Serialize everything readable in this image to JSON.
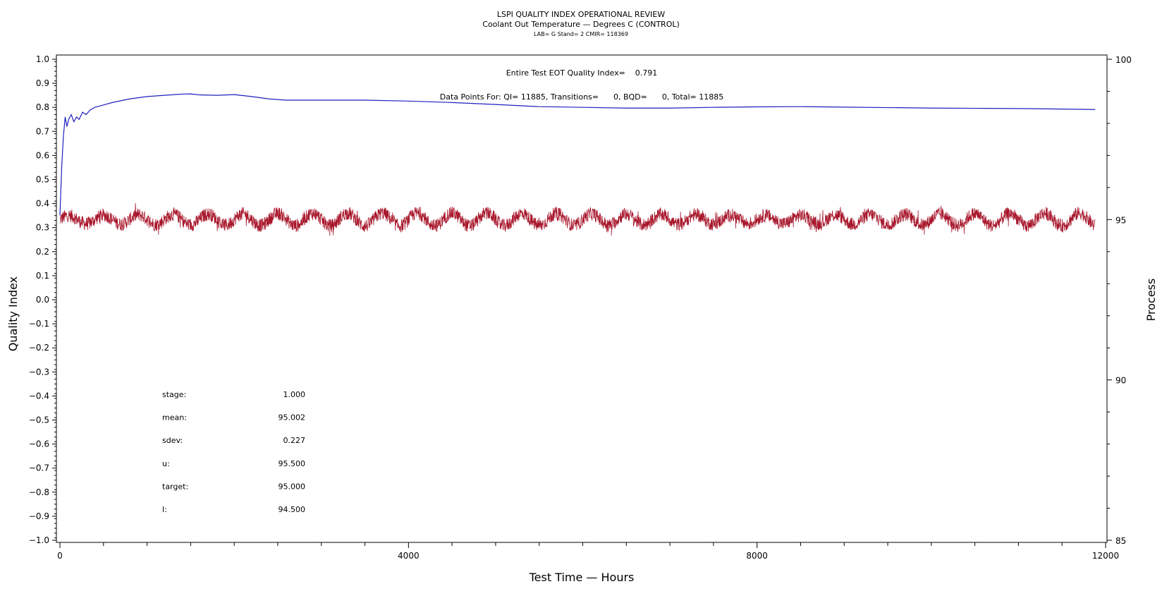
{
  "chart_data": {
    "type": "line",
    "title": "LSPI QUALITY INDEX OPERATIONAL REVIEW",
    "subtitle": "Coolant Out Temperature — Degrees C (CONTROL)",
    "subsubtitle": "LAB= G Stand= 2 CMIR= 118369",
    "annotation_qi": "Entire Test EOT Quality Index=    0.791",
    "annotation_points": "Data Points For: QI= 11885, Transitions=      0, BQD=      0, Total= 11885",
    "xlabel": "Test Time — Hours",
    "ylabel_left": "Quality Index",
    "ylabel_right": "Process",
    "xlim": [
      0,
      12000
    ],
    "ylim_left": [
      -1.0,
      1.0
    ],
    "ylim_right": [
      85,
      100
    ],
    "x_ticks": [
      "0",
      "4000",
      "8000",
      "12000"
    ],
    "y_left_ticks": [
      "1.0",
      "0.9",
      "0.8",
      "0.7",
      "0.6",
      "0.5",
      "0.4",
      "0.3",
      "0.2",
      "0.1",
      "0.0",
      "-0.1",
      "-0.2",
      "-0.3",
      "-0.4",
      "-0.5",
      "-0.6",
      "-0.7",
      "-0.8",
      "-0.9",
      "-1.0"
    ],
    "y_right_ticks": [
      "100",
      "95",
      "90",
      "85"
    ],
    "grid": false,
    "series": [
      {
        "name": "",
        "axis": "left",
        "color": "#1f1fbf",
        "x": [
          0,
          20,
          40,
          60,
          80,
          100,
          130,
          160,
          190,
          220,
          260,
          300,
          350,
          400,
          500,
          600,
          800,
          1000,
          1200,
          1400,
          1500,
          1600,
          1800,
          2000,
          2200,
          2400,
          2600,
          3000,
          3500,
          4000,
          4500,
          5000,
          5500,
          6000,
          6500,
          7000,
          7500,
          8000,
          8500,
          9000,
          9500,
          10000,
          10500,
          11000,
          11500,
          11880
        ],
        "values": [
          0.35,
          0.55,
          0.68,
          0.76,
          0.72,
          0.75,
          0.77,
          0.74,
          0.76,
          0.75,
          0.78,
          0.77,
          0.79,
          0.8,
          0.81,
          0.82,
          0.835,
          0.845,
          0.85,
          0.855,
          0.856,
          0.852,
          0.85,
          0.853,
          0.845,
          0.835,
          0.83,
          0.83,
          0.83,
          0.826,
          0.82,
          0.812,
          0.803,
          0.8,
          0.797,
          0.797,
          0.8,
          0.802,
          0.803,
          0.801,
          0.799,
          0.797,
          0.796,
          0.795,
          0.793,
          0.791
        ]
      },
      {
        "name": "",
        "axis": "right",
        "color": "#a8162b",
        "mean": 95.002,
        "sdev": 0.227,
        "cycle_hours": 400,
        "x_range": [
          0,
          11880
        ],
        "y_range": [
          94.3,
          95.6
        ]
      }
    ],
    "stats": [
      {
        "label": "stage:",
        "value": "1.000"
      },
      {
        "label": "mean:",
        "value": "95.002"
      },
      {
        "label": "sdev:",
        "value": "0.227"
      },
      {
        "label": "u:",
        "value": "95.500"
      },
      {
        "label": "target:",
        "value": "95.000"
      },
      {
        "label": "l:",
        "value": "94.500"
      }
    ]
  }
}
